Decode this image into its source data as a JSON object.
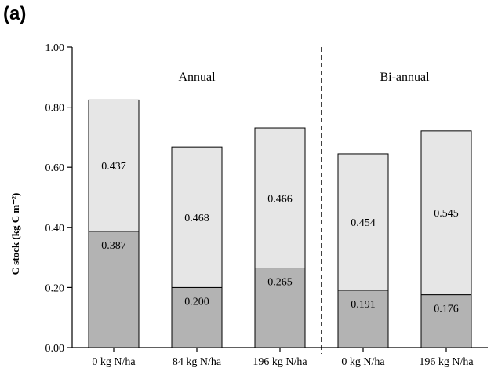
{
  "panel_label": "(a)",
  "chart_data": {
    "type": "bar",
    "stacked": true,
    "categories": [
      "0 kg N/ha",
      "84 kg N/ha",
      "196 kg N/ha",
      "0 kg N/ha",
      "196 kg N/ha"
    ],
    "groups": [
      {
        "label": "Annual",
        "categories": [
          0,
          1,
          2
        ]
      },
      {
        "label": "Bi-annual",
        "categories": [
          3,
          4
        ]
      }
    ],
    "series": [
      {
        "values": [
          0.387,
          0.2,
          0.265,
          0.191,
          0.176
        ],
        "color": "#b3b3b3"
      },
      {
        "values": [
          0.437,
          0.468,
          0.466,
          0.454,
          0.545
        ],
        "color": "#e6e6e6"
      }
    ],
    "value_labels": [
      [
        "0.387",
        "0.200",
        "0.265",
        "0.191",
        "0.176"
      ],
      [
        "0.437",
        "0.468",
        "0.466",
        "0.454",
        "0.545"
      ]
    ],
    "ylabel": "C stock (kg C m⁻²)",
    "ylim": [
      0,
      1.0
    ],
    "yticks": [
      "0.00",
      "0.20",
      "0.40",
      "0.60",
      "0.80",
      "1.00"
    ],
    "group_separator_after_category": 2,
    "grid": false
  }
}
